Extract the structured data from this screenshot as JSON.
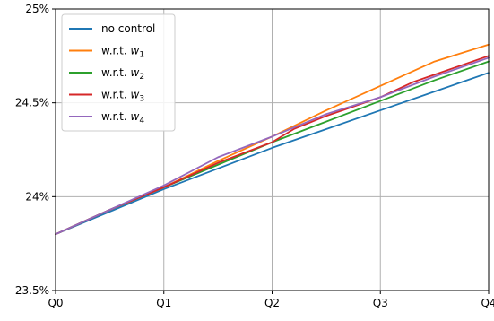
{
  "chart_data": {
    "type": "line",
    "title": "",
    "xlabel": "",
    "ylabel": "",
    "x": [
      "Q0",
      "Q1",
      "Q2",
      "Q3",
      "Q4"
    ],
    "xlim": [
      0,
      4
    ],
    "ylim": [
      23.5,
      25.0
    ],
    "yticks": [
      {
        "value": 23.5,
        "label": "23.5%"
      },
      {
        "value": 24.0,
        "label": "24%"
      },
      {
        "value": 24.5,
        "label": "24.5%"
      },
      {
        "value": 25.0,
        "label": "25%"
      }
    ],
    "grid": true,
    "legend_position": "top-left",
    "series": [
      {
        "name": "no control",
        "color": "#1f77b4",
        "x": [
          0,
          0.5,
          1,
          1.5,
          2,
          2.5,
          3,
          3.5,
          4
        ],
        "values": [
          23.8,
          23.92,
          24.04,
          24.15,
          24.26,
          24.36,
          24.46,
          24.56,
          24.66
        ]
      },
      {
        "name": "w.r.t. w1",
        "label_main": "w.r.t. ",
        "label_var": "w",
        "label_sub": "1",
        "color": "#ff7f0e",
        "x": [
          0,
          0.5,
          1,
          1.5,
          2,
          2.5,
          3,
          3.5,
          4
        ],
        "values": [
          23.8,
          23.93,
          24.05,
          24.19,
          24.32,
          24.46,
          24.59,
          24.72,
          24.81
        ]
      },
      {
        "name": "w.r.t. w2",
        "label_main": "w.r.t. ",
        "label_var": "w",
        "label_sub": "2",
        "color": "#2ca02c",
        "x": [
          0,
          0.5,
          1,
          1.5,
          2,
          2.5,
          3,
          3.5,
          4
        ],
        "values": [
          23.8,
          23.93,
          24.05,
          24.17,
          24.29,
          24.4,
          24.51,
          24.62,
          24.72
        ]
      },
      {
        "name": "w.r.t. w3",
        "label_main": "w.r.t. ",
        "label_var": "w",
        "label_sub": "3",
        "color": "#d62728",
        "x": [
          0,
          0.5,
          1,
          1.5,
          2,
          2.2,
          2.5,
          3,
          3.3,
          3.5,
          4
        ],
        "values": [
          23.8,
          23.93,
          24.05,
          24.18,
          24.29,
          24.36,
          24.43,
          24.53,
          24.61,
          24.65,
          24.75
        ]
      },
      {
        "name": "w.r.t. w4",
        "label_main": "w.r.t. ",
        "label_var": "w",
        "label_sub": "4",
        "color": "#9467bd",
        "x": [
          0,
          0.5,
          1,
          1.5,
          2,
          2.5,
          3,
          3.5,
          4
        ],
        "values": [
          23.8,
          23.93,
          24.06,
          24.21,
          24.32,
          24.44,
          24.53,
          24.64,
          24.74
        ]
      }
    ]
  }
}
